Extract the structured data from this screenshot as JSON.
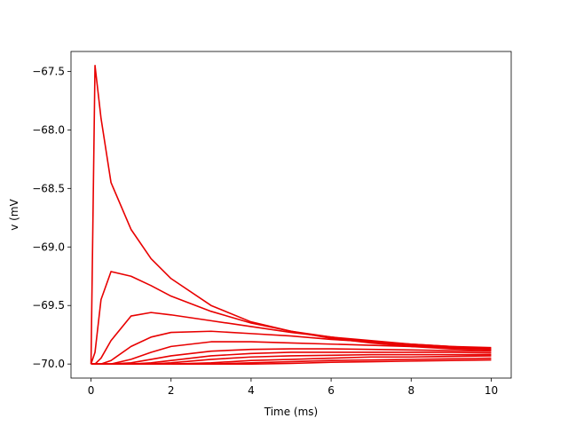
{
  "chart_data": {
    "type": "line",
    "xlabel": "Time (ms)",
    "ylabel": "v (mV",
    "x": [
      0,
      0.1,
      0.25,
      0.5,
      1,
      1.5,
      2,
      3,
      4,
      5,
      6,
      7,
      8,
      9,
      10
    ],
    "color": "#e80000",
    "series": [
      {
        "values": [
          -70,
          -67.45,
          -67.9,
          -68.45,
          -68.85,
          -69.1,
          -69.27,
          -69.5,
          -69.64,
          -69.72,
          -69.78,
          -69.82,
          -69.85,
          -69.87,
          -69.88
        ]
      },
      {
        "values": [
          -70,
          -69.9,
          -69.45,
          -69.21,
          -69.25,
          -69.33,
          -69.42,
          -69.55,
          -69.65,
          -69.72,
          -69.77,
          -69.81,
          -69.84,
          -69.86,
          -69.88
        ]
      },
      {
        "values": [
          -70,
          -70,
          -69.95,
          -69.8,
          -69.59,
          -69.56,
          -69.58,
          -69.63,
          -69.68,
          -69.73,
          -69.77,
          -69.8,
          -69.83,
          -69.85,
          -69.87
        ]
      },
      {
        "values": [
          -70,
          -70,
          -70,
          -69.97,
          -69.85,
          -69.77,
          -69.73,
          -69.72,
          -69.74,
          -69.76,
          -69.79,
          -69.81,
          -69.83,
          -69.85,
          -69.86
        ]
      },
      {
        "values": [
          -70,
          -70,
          -70,
          -70,
          -69.96,
          -69.9,
          -69.85,
          -69.81,
          -69.81,
          -69.82,
          -69.83,
          -69.84,
          -69.85,
          -69.86,
          -69.87
        ]
      },
      {
        "values": [
          -70,
          -70,
          -70,
          -70,
          -69.99,
          -69.96,
          -69.93,
          -69.89,
          -69.875,
          -69.87,
          -69.87,
          -69.875,
          -69.88,
          -69.885,
          -69.89
        ]
      },
      {
        "values": [
          -70,
          -70,
          -70,
          -70,
          -70,
          -69.99,
          -69.97,
          -69.93,
          -69.91,
          -69.9,
          -69.9,
          -69.9,
          -69.9,
          -69.9,
          -69.905
        ]
      },
      {
        "values": [
          -70,
          -70,
          -70,
          -70,
          -70,
          -70,
          -69.99,
          -69.96,
          -69.94,
          -69.93,
          -69.925,
          -69.92,
          -69.92,
          -69.92,
          -69.92
        ]
      },
      {
        "values": [
          -70,
          -70,
          -70,
          -70,
          -70,
          -70,
          -70,
          -69.99,
          -69.97,
          -69.96,
          -69.95,
          -69.94,
          -69.94,
          -69.935,
          -69.93
        ]
      },
      {
        "values": [
          -70,
          -70,
          -70,
          -70,
          -70,
          -70,
          -70,
          -70,
          -69.99,
          -69.98,
          -69.97,
          -69.965,
          -69.96,
          -69.955,
          -69.95
        ]
      },
      {
        "values": [
          -70,
          -70,
          -70,
          -70,
          -70,
          -70,
          -70,
          -70,
          -70,
          -69.995,
          -69.985,
          -69.98,
          -69.975,
          -69.97,
          -69.965
        ]
      }
    ],
    "xlim": [
      -0.5,
      10.5
    ],
    "ylim": [
      -70.12,
      -67.33
    ],
    "xticks": [
      0,
      2,
      4,
      6,
      8,
      10
    ],
    "yticks": [
      {
        "value": -70.0,
        "label": "−70.0"
      },
      {
        "value": -69.5,
        "label": "−69.5"
      },
      {
        "value": -69.0,
        "label": "−69.0"
      },
      {
        "value": -68.5,
        "label": "−68.5"
      },
      {
        "value": -68.0,
        "label": "−68.0"
      },
      {
        "value": -67.5,
        "label": "−67.5"
      }
    ]
  }
}
